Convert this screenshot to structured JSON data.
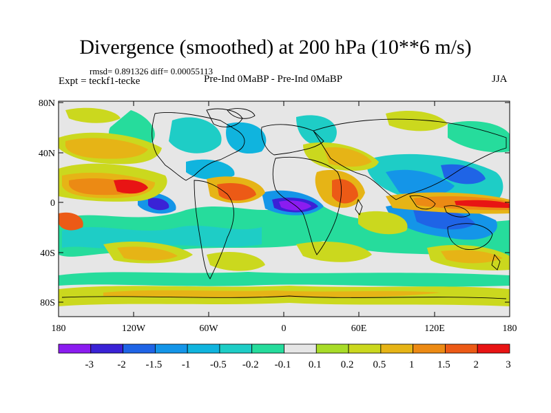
{
  "title": "Divergence (smoothed) at 200 hPa (10**6 m/s)",
  "stats": "rmsd= 0.891326 diff= 0.00055113",
  "experiment": "Expt = teckf1-tecke",
  "comparison": "Pre-Ind 0MaBP - Pre-Ind 0MaBP",
  "season": "JJA",
  "map": {
    "lon_ticks": [
      "180",
      "120W",
      "60W",
      "0",
      "60E",
      "120E",
      "180"
    ],
    "lat_ticks": [
      "80N",
      "40N",
      "0",
      "40S",
      "80S"
    ]
  },
  "colorbar": {
    "labels": [
      "-3",
      "-2",
      "-1.5",
      "-1",
      "-0.5",
      "-0.2",
      "-0.1",
      "0.1",
      "0.2",
      "0.5",
      "1",
      "1.5",
      "2",
      "3"
    ],
    "colors": [
      "#8b1cf0",
      "#3a22d6",
      "#1f64e6",
      "#1495e8",
      "#10b4de",
      "#1ecdc6",
      "#26dc9c",
      "#e6e6e6",
      "#a8dc28",
      "#cbd81e",
      "#e6b416",
      "#ec8a14",
      "#ec5a16",
      "#e81414"
    ]
  }
}
